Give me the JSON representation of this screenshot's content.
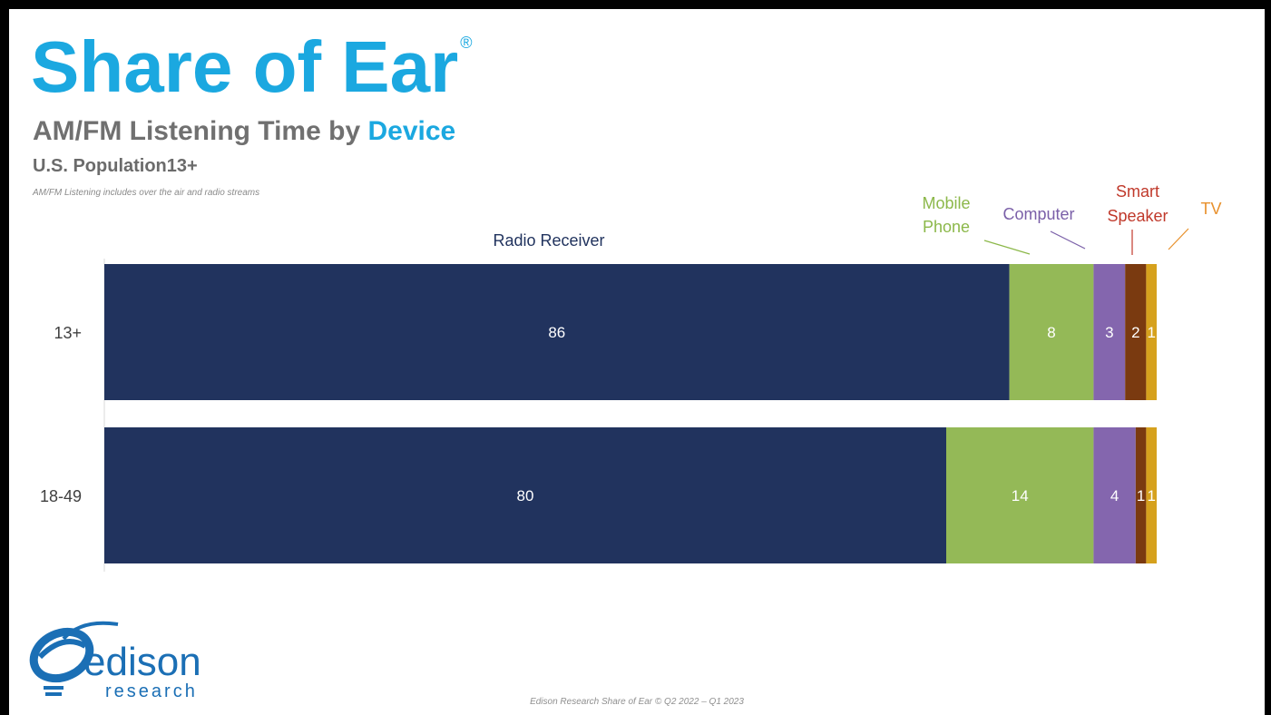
{
  "header": {
    "title": "Share of Ear",
    "registered_mark": "®",
    "subtitle_prefix": "AM/FM Listening Time by ",
    "subtitle_highlight": "Device",
    "population": "U.S. Population13+",
    "note": "AM/FM Listening includes over the air and radio streams"
  },
  "colors": {
    "title_blue": "#1ba8e0",
    "subtitle_gray": "#707070",
    "axis_text": "#404040"
  },
  "chart_data": {
    "type": "bar",
    "orientation": "horizontal",
    "stacked": true,
    "categories": [
      "13+",
      "18-49"
    ],
    "xlim": [
      0,
      100
    ],
    "grid": false,
    "series": [
      {
        "name": "Radio Receiver",
        "label_lines": [
          "Radio Receiver"
        ],
        "color": "#21335e",
        "label_color": "#21335e",
        "values": [
          86,
          80
        ]
      },
      {
        "name": "Mobile Phone",
        "label_lines": [
          "Mobile",
          "Phone"
        ],
        "color": "#94b957",
        "label_color": "#8cb84a",
        "values": [
          8,
          14
        ]
      },
      {
        "name": "Computer",
        "label_lines": [
          "Computer"
        ],
        "color": "#8466ae",
        "label_color": "#7a5fa8",
        "values": [
          3,
          4
        ]
      },
      {
        "name": "Smart Speaker",
        "label_lines": [
          "Smart",
          "Speaker"
        ],
        "color": "#7a3a10",
        "label_color": "#c0392b",
        "values": [
          2,
          1
        ]
      },
      {
        "name": "TV",
        "label_lines": [
          "TV"
        ],
        "color": "#d6a11d",
        "label_color": "#e8912d",
        "values": [
          1,
          1
        ]
      }
    ]
  },
  "logo": {
    "name": "edison",
    "sub": "research",
    "color": "#1b6fb5"
  },
  "source": "Edison Research Share of Ear © Q2 2022 – Q1 2023"
}
